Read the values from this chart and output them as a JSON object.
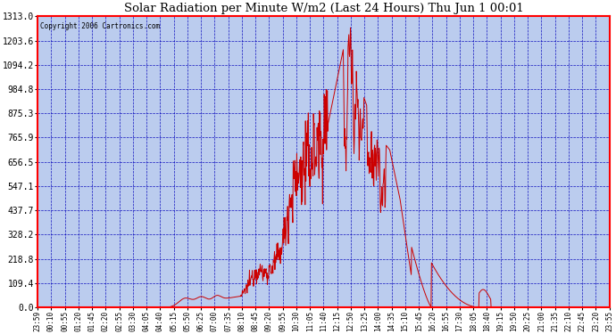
{
  "title": "Solar Radiation per Minute W/m2 (Last 24 Hours) Thu Jun 1 00:01",
  "copyright": "Copyright 2006 Cartronics.com",
  "bg_color": "#FFFFFF",
  "plot_bg_color": "#BBCCEE",
  "line_color": "#CC0000",
  "grid_color": "#0000BB",
  "yticks": [
    0.0,
    109.4,
    218.8,
    328.2,
    437.7,
    547.1,
    656.5,
    765.9,
    875.3,
    984.8,
    1094.2,
    1203.6,
    1313.0
  ],
  "ymax": 1313.0,
  "xtick_labels": [
    "23:59",
    "00:10",
    "00:55",
    "01:20",
    "01:45",
    "02:20",
    "02:55",
    "03:30",
    "04:05",
    "04:40",
    "05:15",
    "05:50",
    "06:25",
    "07:00",
    "07:35",
    "08:10",
    "08:45",
    "09:20",
    "09:55",
    "10:30",
    "11:05",
    "11:40",
    "12:15",
    "12:50",
    "13:25",
    "14:00",
    "14:35",
    "15:10",
    "15:45",
    "16:20",
    "16:55",
    "17:30",
    "18:05",
    "18:40",
    "19:15",
    "19:50",
    "20:25",
    "21:00",
    "21:35",
    "22:10",
    "22:45",
    "23:20",
    "23:55"
  ],
  "num_points": 1440
}
